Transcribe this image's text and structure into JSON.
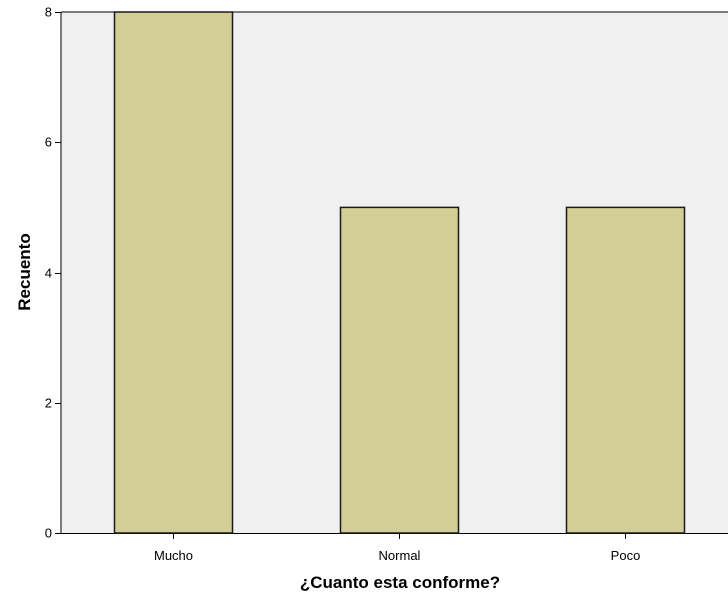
{
  "chart_data": {
    "type": "bar",
    "categories": [
      "Mucho",
      "Normal",
      "Poco"
    ],
    "values": [
      8,
      5,
      5
    ],
    "title": "",
    "xlabel": "¿Cuanto esta conforme?",
    "ylabel": "Recuento",
    "ylim": [
      0,
      8
    ],
    "yticks": [
      0,
      2,
      4,
      6,
      8
    ],
    "grid": false,
    "legend": "none",
    "colors": {
      "bar_fill": "#d3ce96",
      "bar_stroke": "#1a1a1a",
      "plot_background": "#f0f0f0",
      "axis": "#000000"
    }
  }
}
